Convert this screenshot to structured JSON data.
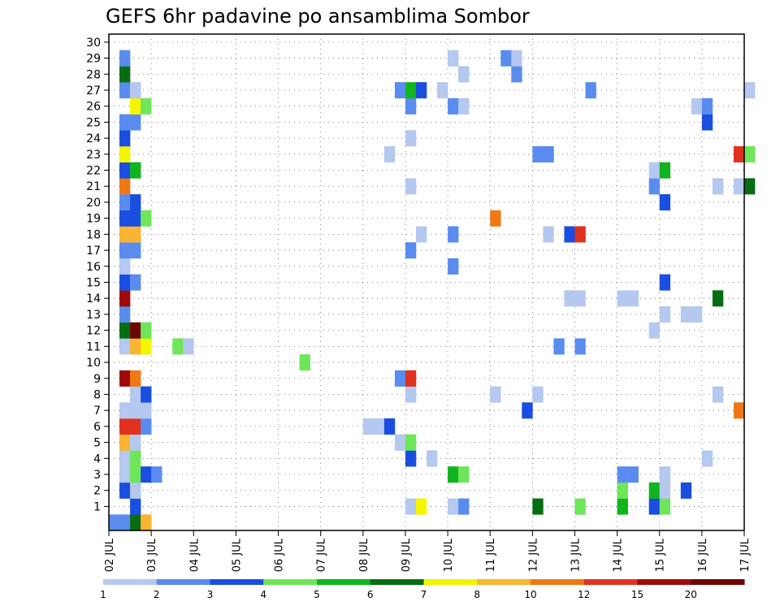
{
  "chart_data": {
    "type": "heatmap",
    "title": "GEFS 6hr padavine po ansamblima Sombor",
    "x_ticks": [
      "02 JUL",
      "03 JUL",
      "04 JUL",
      "05 JUL",
      "06 JUL",
      "07 JUL",
      "08 JUL",
      "09 JUL",
      "10 JUL",
      "11 JUL",
      "12 JUL",
      "13 JUL",
      "14 JUL",
      "15 JUL",
      "16 JUL",
      "17 JUL"
    ],
    "y_ticks": [
      "1",
      "2",
      "3",
      "4",
      "5",
      "6",
      "7",
      "8",
      "9",
      "10",
      "11",
      "12",
      "13",
      "14",
      "15",
      "16",
      "17",
      "18",
      "19",
      "20",
      "21",
      "22",
      "23",
      "24",
      "25",
      "26",
      "27",
      "28",
      "29",
      "30"
    ],
    "x_range": [
      "02 JUL",
      "17 JUL"
    ],
    "y_range": [
      0,
      30
    ],
    "time_step_hours": 6,
    "grid": true,
    "legend": {
      "position": "bottom",
      "labels": [
        "1",
        "2",
        "3",
        "4",
        "5",
        "6",
        "7",
        "8",
        "10",
        "12",
        "15",
        "20"
      ],
      "colors": [
        "#b4c8f0",
        "#5a8cf0",
        "#1a4ee0",
        "#6ee65a",
        "#10b41e",
        "#066e12",
        "#f5f500",
        "#f8b432",
        "#f07814",
        "#e0321e",
        "#a00a0a",
        "#6e0505"
      ]
    },
    "colors": {
      "1": "#b4c8f0",
      "2": "#5a8cf0",
      "3": "#1a4ee0",
      "4": "#6ee65a",
      "5": "#10b41e",
      "6": "#066e12",
      "7": "#f5f500",
      "8": "#f8b432",
      "10": "#f07814",
      "12": "#e0321e",
      "15": "#a00a0a",
      "20": "#6e0505"
    },
    "cells": [
      {
        "x": "02 JUL 00Z",
        "y": 0,
        "v": 2
      },
      {
        "x": "02 JUL 06Z",
        "y": 0,
        "v": 2
      },
      {
        "x": "02 JUL 12Z",
        "y": 0,
        "v": 6
      },
      {
        "x": "02 JUL 18Z",
        "y": 0,
        "v": 8
      },
      {
        "x": "02 JUL 12Z",
        "y": 1,
        "v": 3
      },
      {
        "x": "09 JUL 00Z",
        "y": 1,
        "v": 1
      },
      {
        "x": "09 JUL 06Z",
        "y": 1,
        "v": 7
      },
      {
        "x": "10 JUL 00Z",
        "y": 1,
        "v": 1
      },
      {
        "x": "10 JUL 06Z",
        "y": 1,
        "v": 2
      },
      {
        "x": "12 JUL 00Z",
        "y": 1,
        "v": 6
      },
      {
        "x": "13 JUL 00Z",
        "y": 1,
        "v": 4
      },
      {
        "x": "14 JUL 00Z",
        "y": 1,
        "v": 5
      },
      {
        "x": "14 JUL 18Z",
        "y": 1,
        "v": 3
      },
      {
        "x": "15 JUL 00Z",
        "y": 1,
        "v": 4
      },
      {
        "x": "02 JUL 06Z",
        "y": 2,
        "v": 3
      },
      {
        "x": "02 JUL 12Z",
        "y": 2,
        "v": 1
      },
      {
        "x": "14 JUL 00Z",
        "y": 2,
        "v": 4
      },
      {
        "x": "14 JUL 18Z",
        "y": 2,
        "v": 5
      },
      {
        "x": "15 JUL 00Z",
        "y": 2,
        "v": 1
      },
      {
        "x": "15 JUL 12Z",
        "y": 2,
        "v": 3
      },
      {
        "x": "02 JUL 06Z",
        "y": 3,
        "v": 1
      },
      {
        "x": "02 JUL 12Z",
        "y": 3,
        "v": 4
      },
      {
        "x": "02 JUL 18Z",
        "y": 3,
        "v": 3
      },
      {
        "x": "03 JUL 00Z",
        "y": 3,
        "v": 2
      },
      {
        "x": "10 JUL 00Z",
        "y": 3,
        "v": 5
      },
      {
        "x": "10 JUL 06Z",
        "y": 3,
        "v": 4
      },
      {
        "x": "14 JUL 00Z",
        "y": 3,
        "v": 2
      },
      {
        "x": "14 JUL 06Z",
        "y": 3,
        "v": 2
      },
      {
        "x": "15 JUL 00Z",
        "y": 3,
        "v": 1
      },
      {
        "x": "02 JUL 06Z",
        "y": 4,
        "v": 1
      },
      {
        "x": "02 JUL 12Z",
        "y": 4,
        "v": 4
      },
      {
        "x": "09 JUL 00Z",
        "y": 4,
        "v": 3
      },
      {
        "x": "09 JUL 12Z",
        "y": 4,
        "v": 1
      },
      {
        "x": "16 JUL 00Z",
        "y": 4,
        "v": 1
      },
      {
        "x": "02 JUL 06Z",
        "y": 5,
        "v": 8
      },
      {
        "x": "02 JUL 12Z",
        "y": 5,
        "v": 1
      },
      {
        "x": "08 JUL 18Z",
        "y": 5,
        "v": 1
      },
      {
        "x": "09 JUL 00Z",
        "y": 5,
        "v": 4
      },
      {
        "x": "02 JUL 06Z",
        "y": 6,
        "v": 12
      },
      {
        "x": "02 JUL 12Z",
        "y": 6,
        "v": 12
      },
      {
        "x": "02 JUL 18Z",
        "y": 6,
        "v": 2
      },
      {
        "x": "08 JUL 00Z",
        "y": 6,
        "v": 1
      },
      {
        "x": "08 JUL 06Z",
        "y": 6,
        "v": 1
      },
      {
        "x": "08 JUL 12Z",
        "y": 6,
        "v": 3
      },
      {
        "x": "02 JUL 06Z",
        "y": 7,
        "v": 1
      },
      {
        "x": "02 JUL 12Z",
        "y": 7,
        "v": 1
      },
      {
        "x": "02 JUL 18Z",
        "y": 7,
        "v": 1
      },
      {
        "x": "11 JUL 18Z",
        "y": 7,
        "v": 3
      },
      {
        "x": "16 JUL 18Z",
        "y": 7,
        "v": 10
      },
      {
        "x": "02 JUL 12Z",
        "y": 8,
        "v": 1
      },
      {
        "x": "02 JUL 18Z",
        "y": 8,
        "v": 3
      },
      {
        "x": "09 JUL 00Z",
        "y": 8,
        "v": 1
      },
      {
        "x": "11 JUL 00Z",
        "y": 8,
        "v": 1
      },
      {
        "x": "12 JUL 00Z",
        "y": 8,
        "v": 1
      },
      {
        "x": "16 JUL 06Z",
        "y": 8,
        "v": 1
      },
      {
        "x": "02 JUL 06Z",
        "y": 9,
        "v": 15
      },
      {
        "x": "02 JUL 12Z",
        "y": 9,
        "v": 10
      },
      {
        "x": "08 JUL 18Z",
        "y": 9,
        "v": 2
      },
      {
        "x": "09 JUL 00Z",
        "y": 9,
        "v": 12
      },
      {
        "x": "06 JUL 12Z",
        "y": 10,
        "v": 4
      },
      {
        "x": "02 JUL 06Z",
        "y": 11,
        "v": 1
      },
      {
        "x": "02 JUL 12Z",
        "y": 11,
        "v": 8
      },
      {
        "x": "02 JUL 18Z",
        "y": 11,
        "v": 7
      },
      {
        "x": "03 JUL 12Z",
        "y": 11,
        "v": 4
      },
      {
        "x": "03 JUL 18Z",
        "y": 11,
        "v": 1
      },
      {
        "x": "12 JUL 12Z",
        "y": 11,
        "v": 2
      },
      {
        "x": "13 JUL 00Z",
        "y": 11,
        "v": 2
      },
      {
        "x": "02 JUL 06Z",
        "y": 12,
        "v": 6
      },
      {
        "x": "02 JUL 12Z",
        "y": 12,
        "v": 20
      },
      {
        "x": "02 JUL 18Z",
        "y": 12,
        "v": 4
      },
      {
        "x": "14 JUL 18Z",
        "y": 12,
        "v": 1
      },
      {
        "x": "02 JUL 06Z",
        "y": 13,
        "v": 2
      },
      {
        "x": "15 JUL 00Z",
        "y": 13,
        "v": 1
      },
      {
        "x": "15 JUL 12Z",
        "y": 13,
        "v": 1
      },
      {
        "x": "15 JUL 18Z",
        "y": 13,
        "v": 1
      },
      {
        "x": "02 JUL 06Z",
        "y": 14,
        "v": 15
      },
      {
        "x": "12 JUL 18Z",
        "y": 14,
        "v": 1
      },
      {
        "x": "13 JUL 00Z",
        "y": 14,
        "v": 1
      },
      {
        "x": "14 JUL 00Z",
        "y": 14,
        "v": 1
      },
      {
        "x": "14 JUL 06Z",
        "y": 14,
        "v": 1
      },
      {
        "x": "16 JUL 06Z",
        "y": 14,
        "v": 6
      },
      {
        "x": "02 JUL 06Z",
        "y": 15,
        "v": 3
      },
      {
        "x": "02 JUL 12Z",
        "y": 15,
        "v": 2
      },
      {
        "x": "15 JUL 00Z",
        "y": 15,
        "v": 3
      },
      {
        "x": "02 JUL 06Z",
        "y": 16,
        "v": 1
      },
      {
        "x": "10 JUL 00Z",
        "y": 16,
        "v": 2
      },
      {
        "x": "02 JUL 06Z",
        "y": 17,
        "v": 2
      },
      {
        "x": "02 JUL 12Z",
        "y": 17,
        "v": 2
      },
      {
        "x": "09 JUL 00Z",
        "y": 17,
        "v": 2
      },
      {
        "x": "02 JUL 06Z",
        "y": 18,
        "v": 8
      },
      {
        "x": "02 JUL 12Z",
        "y": 18,
        "v": 8
      },
      {
        "x": "09 JUL 06Z",
        "y": 18,
        "v": 1
      },
      {
        "x": "10 JUL 00Z",
        "y": 18,
        "v": 2
      },
      {
        "x": "12 JUL 06Z",
        "y": 18,
        "v": 1
      },
      {
        "x": "12 JUL 18Z",
        "y": 18,
        "v": 3
      },
      {
        "x": "13 JUL 00Z",
        "y": 18,
        "v": 12
      },
      {
        "x": "02 JUL 06Z",
        "y": 19,
        "v": 3
      },
      {
        "x": "02 JUL 12Z",
        "y": 19,
        "v": 3
      },
      {
        "x": "02 JUL 18Z",
        "y": 19,
        "v": 4
      },
      {
        "x": "11 JUL 00Z",
        "y": 19,
        "v": 10
      },
      {
        "x": "02 JUL 06Z",
        "y": 20,
        "v": 2
      },
      {
        "x": "02 JUL 12Z",
        "y": 20,
        "v": 3
      },
      {
        "x": "15 JUL 00Z",
        "y": 20,
        "v": 3
      },
      {
        "x": "02 JUL 06Z",
        "y": 21,
        "v": 10
      },
      {
        "x": "09 JUL 00Z",
        "y": 21,
        "v": 1
      },
      {
        "x": "14 JUL 18Z",
        "y": 21,
        "v": 2
      },
      {
        "x": "16 JUL 06Z",
        "y": 21,
        "v": 1
      },
      {
        "x": "16 JUL 18Z",
        "y": 21,
        "v": 1
      },
      {
        "x": "17 JUL 00Z",
        "y": 21,
        "v": 6
      },
      {
        "x": "02 JUL 06Z",
        "y": 22,
        "v": 3
      },
      {
        "x": "02 JUL 12Z",
        "y": 22,
        "v": 5
      },
      {
        "x": "14 JUL 18Z",
        "y": 22,
        "v": 1
      },
      {
        "x": "15 JUL 00Z",
        "y": 22,
        "v": 5
      },
      {
        "x": "02 JUL 06Z",
        "y": 23,
        "v": 7
      },
      {
        "x": "08 JUL 12Z",
        "y": 23,
        "v": 1
      },
      {
        "x": "12 JUL 00Z",
        "y": 23,
        "v": 2
      },
      {
        "x": "12 JUL 06Z",
        "y": 23,
        "v": 2
      },
      {
        "x": "16 JUL 18Z",
        "y": 23,
        "v": 12
      },
      {
        "x": "17 JUL 00Z",
        "y": 23,
        "v": 4
      },
      {
        "x": "02 JUL 06Z",
        "y": 24,
        "v": 3
      },
      {
        "x": "09 JUL 00Z",
        "y": 24,
        "v": 1
      },
      {
        "x": "02 JUL 06Z",
        "y": 25,
        "v": 2
      },
      {
        "x": "02 JUL 12Z",
        "y": 25,
        "v": 2
      },
      {
        "x": "16 JUL 00Z",
        "y": 25,
        "v": 3
      },
      {
        "x": "02 JUL 12Z",
        "y": 26,
        "v": 7
      },
      {
        "x": "02 JUL 18Z",
        "y": 26,
        "v": 4
      },
      {
        "x": "09 JUL 00Z",
        "y": 26,
        "v": 2
      },
      {
        "x": "10 JUL 00Z",
        "y": 26,
        "v": 2
      },
      {
        "x": "10 JUL 06Z",
        "y": 26,
        "v": 1
      },
      {
        "x": "15 JUL 18Z",
        "y": 26,
        "v": 1
      },
      {
        "x": "16 JUL 00Z",
        "y": 26,
        "v": 2
      },
      {
        "x": "02 JUL 06Z",
        "y": 27,
        "v": 2
      },
      {
        "x": "02 JUL 12Z",
        "y": 27,
        "v": 1
      },
      {
        "x": "08 JUL 18Z",
        "y": 27,
        "v": 2
      },
      {
        "x": "09 JUL 00Z",
        "y": 27,
        "v": 5
      },
      {
        "x": "09 JUL 06Z",
        "y": 27,
        "v": 3
      },
      {
        "x": "09 JUL 18Z",
        "y": 27,
        "v": 1
      },
      {
        "x": "13 JUL 06Z",
        "y": 27,
        "v": 2
      },
      {
        "x": "17 JUL 00Z",
        "y": 27,
        "v": 1
      },
      {
        "x": "02 JUL 06Z",
        "y": 28,
        "v": 6
      },
      {
        "x": "10 JUL 06Z",
        "y": 28,
        "v": 1
      },
      {
        "x": "11 JUL 12Z",
        "y": 28,
        "v": 2
      },
      {
        "x": "02 JUL 06Z",
        "y": 29,
        "v": 2
      },
      {
        "x": "10 JUL 00Z",
        "y": 29,
        "v": 1
      },
      {
        "x": "11 JUL 06Z",
        "y": 29,
        "v": 2
      },
      {
        "x": "11 JUL 12Z",
        "y": 29,
        "v": 1
      }
    ]
  }
}
